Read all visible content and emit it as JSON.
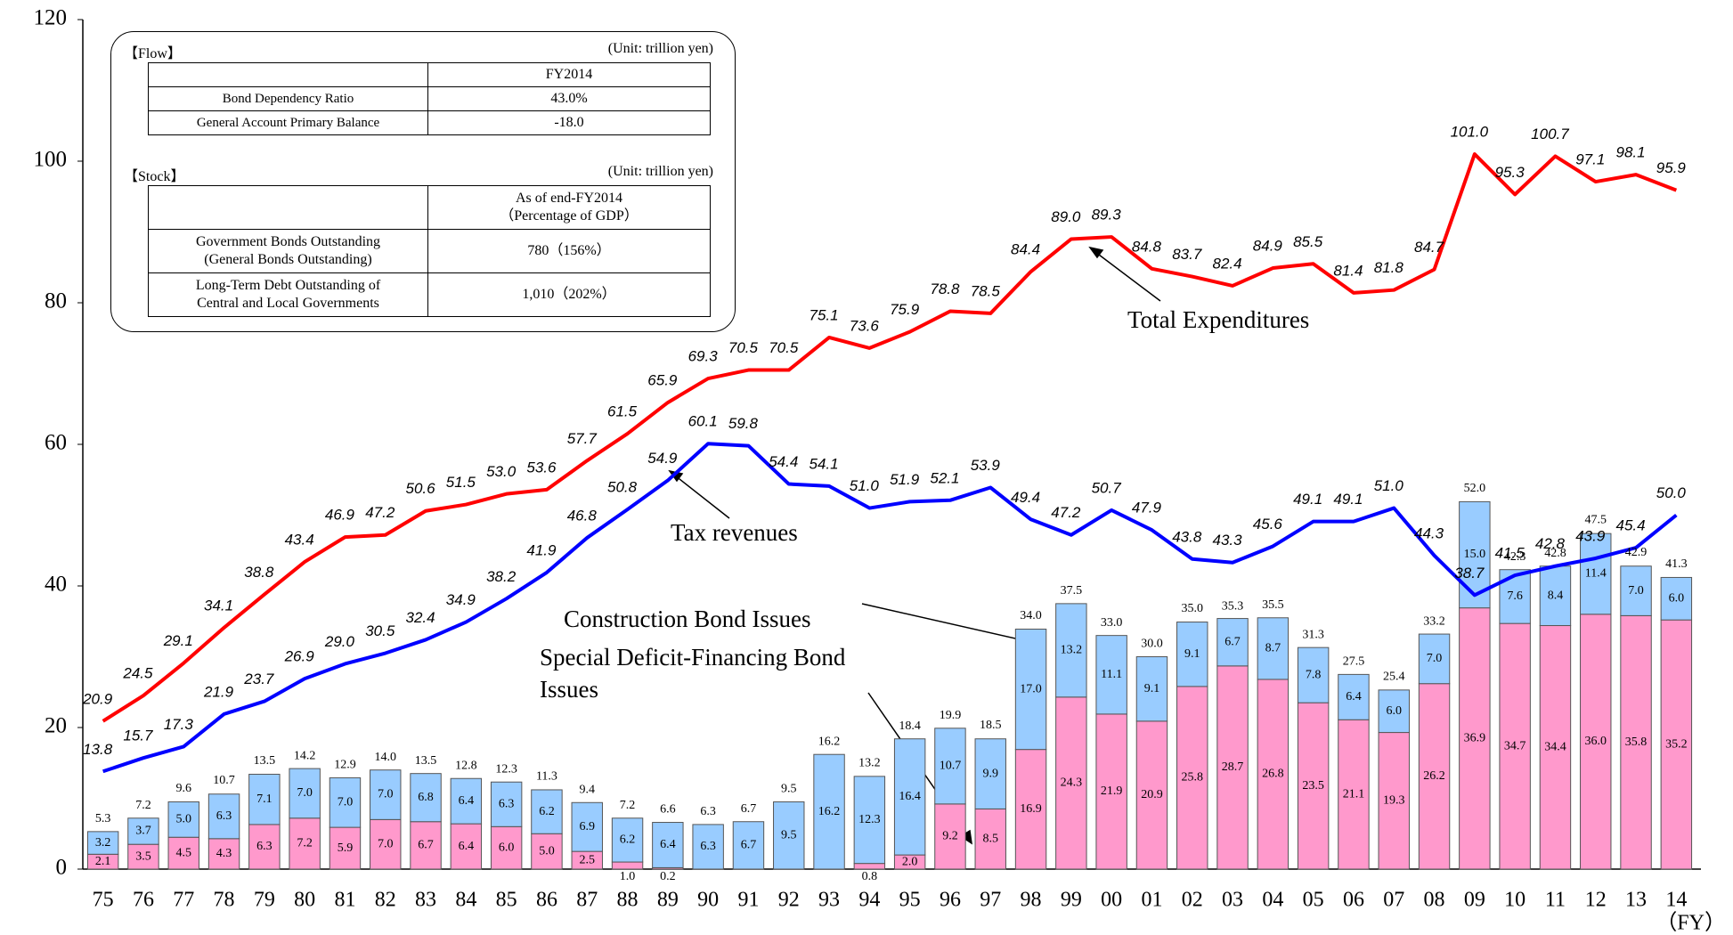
{
  "chart_data": {
    "type": "bar",
    "stacked": true,
    "x_label": "（FY）",
    "categories": [
      "75",
      "76",
      "77",
      "78",
      "79",
      "80",
      "81",
      "82",
      "83",
      "84",
      "85",
      "86",
      "87",
      "88",
      "89",
      "90",
      "91",
      "92",
      "93",
      "94",
      "95",
      "96",
      "97",
      "98",
      "99",
      "00",
      "01",
      "02",
      "03",
      "04",
      "05",
      "06",
      "07",
      "08",
      "09",
      "10",
      "11",
      "12",
      "13",
      "14"
    ],
    "ylim": [
      0,
      120
    ],
    "yticks": [
      0,
      20,
      40,
      60,
      80,
      100,
      120
    ],
    "series": [
      {
        "name": "Special Deficit-Financing Bond Issues",
        "type": "bar",
        "color": "#ff99cc",
        "values": [
          2.1,
          3.5,
          4.5,
          4.3,
          6.3,
          7.2,
          5.9,
          7.0,
          6.7,
          6.4,
          6.0,
          5.0,
          2.5,
          1.0,
          0.2,
          null,
          null,
          null,
          null,
          0.8,
          2.0,
          9.2,
          8.5,
          16.9,
          24.3,
          21.9,
          20.9,
          25.8,
          28.7,
          26.8,
          23.5,
          21.1,
          19.3,
          26.2,
          36.9,
          34.7,
          34.4,
          36.0,
          35.8,
          35.2
        ],
        "value_labels": [
          "2.1",
          "3.5",
          "4.5",
          "4.3",
          "6.3",
          "7.2",
          "5.9",
          "7.0",
          "6.7",
          "6.4",
          "6.0",
          "5.0",
          "2.5",
          "1.0",
          "0.2",
          null,
          null,
          null,
          null,
          "0.8",
          "2.0",
          "9.2",
          "8.5",
          "16.9",
          "24.3",
          "21.9",
          "20.9",
          "25.8",
          "28.7",
          "26.8",
          "23.5",
          "21.1",
          "19.3",
          "26.2",
          "36.9",
          "34.7",
          "34.4",
          "36.0",
          "35.8",
          "35.2"
        ]
      },
      {
        "name": "Construction Bond Issues",
        "type": "bar",
        "color": "#99ccff",
        "values": [
          3.2,
          3.7,
          5.0,
          6.3,
          7.1,
          7.0,
          7.0,
          7.0,
          6.8,
          6.4,
          6.3,
          6.2,
          6.9,
          6.2,
          6.4,
          6.3,
          6.7,
          9.5,
          16.2,
          12.3,
          16.4,
          10.7,
          9.9,
          17.0,
          13.2,
          11.1,
          9.1,
          9.1,
          6.7,
          8.7,
          7.8,
          6.4,
          6.0,
          7.0,
          15.0,
          7.6,
          8.4,
          11.4,
          7.0,
          6.0
        ],
        "value_labels": [
          "3.2",
          "3.7",
          "5.0",
          "6.3",
          "7.1",
          "7.0",
          "7.0",
          "7.0",
          "6.8",
          "6.4",
          "6.3",
          "6.2",
          "6.9",
          "6.2",
          "6.4",
          "6.3",
          "6.7",
          "9.5",
          "16.2",
          "12.3",
          "16.4",
          "10.7",
          "9.9",
          "17.0",
          "13.2",
          "11.1",
          "9.1",
          "9.1",
          "6.7",
          "8.7",
          "7.8",
          "6.4",
          "6.0",
          "7.0",
          "15.0",
          "7.6",
          "8.4",
          "11.4",
          "7.0",
          "6.0"
        ]
      },
      {
        "name": "Total Expenditures",
        "type": "line",
        "color": "#ff0000",
        "values": [
          20.9,
          24.5,
          29.1,
          34.1,
          38.8,
          43.4,
          46.9,
          47.2,
          50.6,
          51.5,
          53.0,
          53.6,
          57.7,
          61.5,
          65.9,
          69.3,
          70.5,
          70.5,
          75.1,
          73.6,
          75.9,
          78.8,
          78.5,
          84.4,
          89.0,
          89.3,
          84.8,
          83.7,
          82.4,
          84.9,
          85.5,
          81.4,
          81.8,
          84.7,
          101.0,
          95.3,
          100.7,
          97.1,
          98.1,
          95.9
        ],
        "value_labels": [
          "20.9",
          "24.5",
          "29.1",
          "34.1",
          "38.8",
          "43.4",
          "46.9",
          "47.2",
          "50.6",
          "51.5",
          "53.0",
          "53.6",
          "57.7",
          "61.5",
          "65.9",
          "69.3",
          "70.5",
          "70.5",
          "75.1",
          "73.6",
          "75.9",
          "78.8",
          "78.5",
          "84.4",
          "89.0",
          "89.3",
          "84.8",
          "83.7",
          "82.4",
          "84.9",
          "85.5",
          "81.4",
          "81.8",
          "84.7",
          "101.0",
          "95.3",
          "100.7",
          "97.1",
          "98.1",
          "95.9"
        ]
      },
      {
        "name": "Tax revenues",
        "type": "line",
        "color": "#0000ff",
        "values": [
          13.8,
          15.7,
          17.3,
          21.9,
          23.7,
          26.9,
          29.0,
          30.5,
          32.4,
          34.9,
          38.2,
          41.9,
          46.8,
          50.8,
          54.9,
          60.1,
          59.8,
          54.4,
          54.1,
          51.0,
          51.9,
          52.1,
          53.9,
          49.4,
          47.2,
          50.7,
          47.9,
          43.8,
          43.3,
          45.6,
          49.1,
          49.1,
          51.0,
          44.3,
          38.7,
          41.5,
          42.8,
          43.9,
          45.4,
          50.0
        ],
        "value_labels": [
          "13.8",
          "15.7",
          "17.3",
          "21.9",
          "23.7",
          "26.9",
          "29.0",
          "30.5",
          "32.4",
          "34.9",
          "38.2",
          "41.9",
          "46.8",
          "50.8",
          "54.9",
          "60.1",
          "59.8",
          "54.4",
          "54.1",
          "51.0",
          "51.9",
          "52.1",
          "53.9",
          "49.4",
          "47.2",
          "50.7",
          "47.9",
          "43.8",
          "43.3",
          "45.6",
          "49.1",
          "49.1",
          "51.0",
          "44.3",
          "38.7",
          "41.5",
          "42.8",
          "43.9",
          "45.4",
          "50.0"
        ]
      }
    ],
    "bar_totals": {
      "values": [
        5.3,
        7.2,
        9.6,
        10.7,
        13.5,
        14.2,
        12.9,
        14.0,
        13.5,
        12.8,
        12.3,
        11.3,
        9.4,
        7.2,
        6.6,
        6.3,
        6.7,
        9.5,
        16.2,
        13.2,
        18.4,
        19.9,
        18.5,
        34.0,
        37.5,
        33.0,
        30.0,
        35.0,
        35.3,
        35.5,
        31.3,
        27.5,
        25.4,
        33.2,
        52.0,
        42.3,
        42.8,
        47.5,
        42.9,
        41.3
      ],
      "value_labels": [
        "5.3",
        "7.2",
        "9.6",
        "10.7",
        "13.5",
        "14.2",
        "12.9",
        "14.0",
        "13.5",
        "12.8",
        "12.3",
        "11.3",
        "9.4",
        "7.2",
        "6.6",
        "6.3",
        "6.7",
        "9.5",
        "16.2",
        "13.2",
        "18.4",
        "19.9",
        "18.5",
        "34.0",
        "37.5",
        "33.0",
        "30.0",
        "35.0",
        "35.3",
        "35.5",
        "31.3",
        "27.5",
        "25.4",
        "33.2",
        "52.0",
        "42.3",
        "42.8",
        "47.5",
        "42.9",
        "41.3"
      ]
    }
  },
  "table": {
    "flow": {
      "heading": "【Flow】",
      "unit": "(Unit: trillion yen)",
      "header": [
        "FY2014"
      ],
      "rows": [
        [
          [
            "Bond Dependency Ratio"
          ],
          "43.0%"
        ],
        [
          [
            "General Account Primary Balance"
          ],
          "-18.0"
        ]
      ]
    },
    "stock": {
      "heading": "【Stock】",
      "unit": "(Unit: trillion yen)",
      "header": [
        "As of end-FY2014",
        "（Percentage of GDP）"
      ],
      "rows": [
        [
          [
            "Government Bonds Outstanding",
            "(General Bonds Outstanding)"
          ],
          "780（156%）"
        ],
        [
          [
            "Long-Term Debt Outstanding of",
            "Central and Local Governments"
          ],
          "1,010（202%）"
        ]
      ]
    }
  }
}
